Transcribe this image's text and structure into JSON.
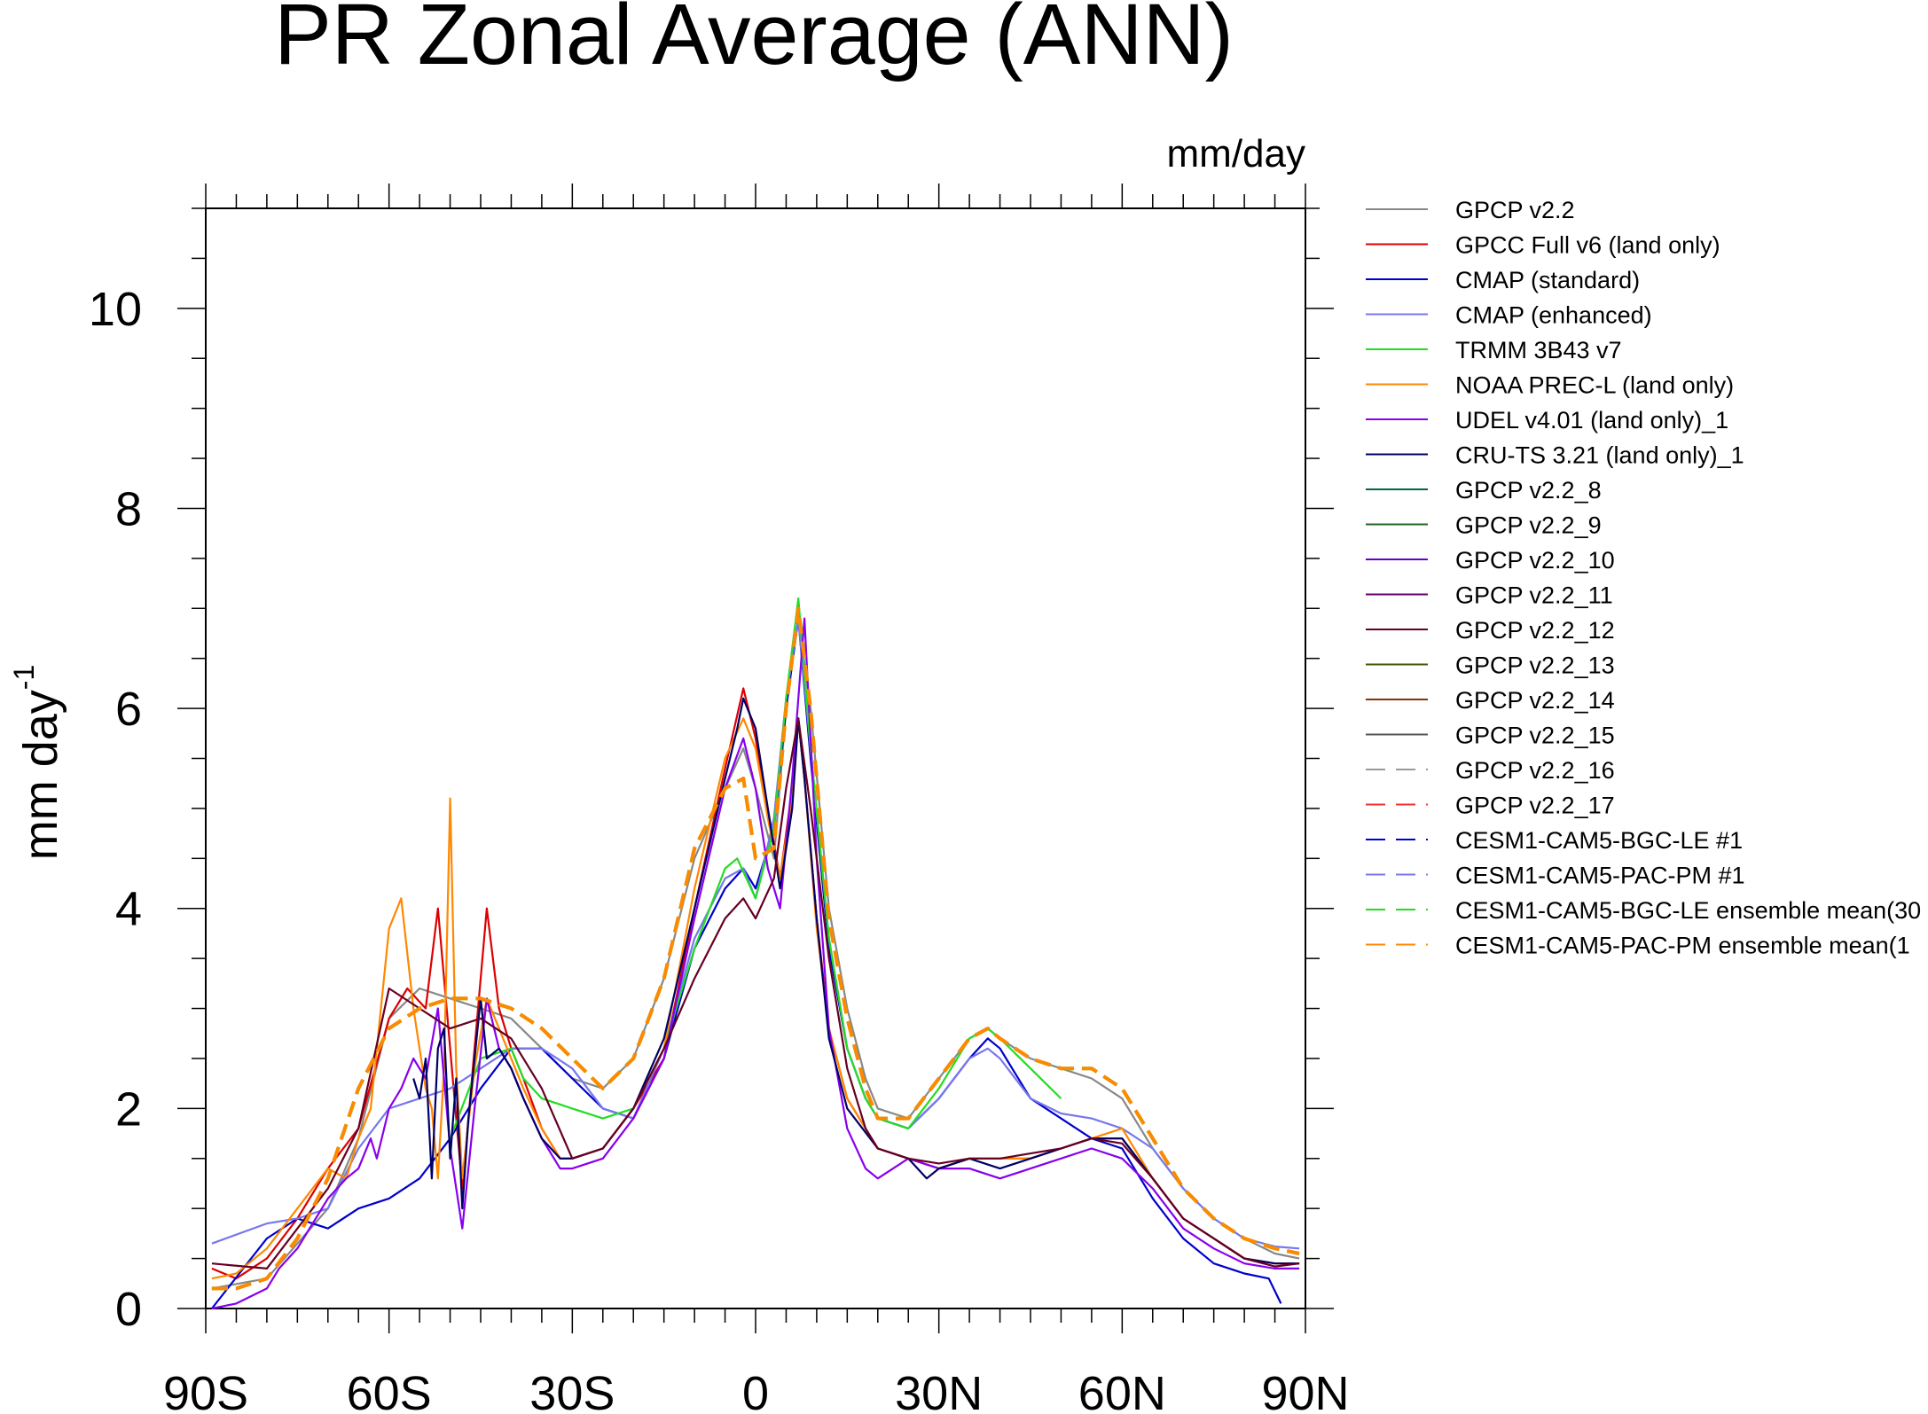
{
  "chart_data": {
    "type": "line",
    "title": "PR Zonal Average (ANN)",
    "units_label": "mm/day",
    "ylabel": "mm day",
    "ylabel_superscript": "-1",
    "xlim": [
      -90,
      90
    ],
    "ylim": [
      0,
      11
    ],
    "grid": false,
    "legend_position": "right",
    "x_ticks": [
      {
        "value": -90,
        "label": "90S"
      },
      {
        "value": -60,
        "label": "60S"
      },
      {
        "value": -30,
        "label": "30S"
      },
      {
        "value": 0,
        "label": "0"
      },
      {
        "value": 30,
        "label": "30N"
      },
      {
        "value": 60,
        "label": "60N"
      },
      {
        "value": 90,
        "label": "90N"
      }
    ],
    "y_ticks": [
      {
        "value": 0,
        "label": "0"
      },
      {
        "value": 2,
        "label": "2"
      },
      {
        "value": 4,
        "label": "4"
      },
      {
        "value": 6,
        "label": "6"
      },
      {
        "value": 8,
        "label": "8"
      },
      {
        "value": 10,
        "label": "10"
      }
    ],
    "series": [
      {
        "name": "GPCP v2.2",
        "color": "#888888",
        "dash": "solid",
        "x": [
          -89,
          -80,
          -70,
          -65,
          -60,
          -55,
          -50,
          -45,
          -40,
          -35,
          -30,
          -25,
          -20,
          -15,
          -10,
          -5,
          -2,
          0,
          3,
          5,
          7,
          9,
          12,
          15,
          18,
          20,
          25,
          30,
          35,
          38,
          40,
          45,
          50,
          55,
          60,
          65,
          70,
          75,
          80,
          85,
          89
        ],
        "y": [
          0.2,
          0.3,
          1.0,
          1.7,
          2.9,
          3.2,
          3.1,
          3.0,
          2.9,
          2.6,
          2.3,
          2.2,
          2.5,
          3.3,
          4.5,
          5.2,
          5.6,
          5.2,
          4.5,
          6.0,
          6.9,
          6.0,
          4.0,
          3.0,
          2.3,
          2.0,
          1.9,
          2.3,
          2.7,
          2.8,
          2.7,
          2.5,
          2.4,
          2.3,
          2.1,
          1.6,
          1.2,
          0.9,
          0.7,
          0.55,
          0.5
        ]
      },
      {
        "name": "GPCC Full v6 (land only)",
        "color": "#dd0000",
        "dash": "solid",
        "x": [
          -89,
          -85,
          -80,
          -75,
          -70,
          -65,
          -60,
          -57,
          -54,
          -52,
          -50,
          -48,
          -46,
          -44,
          -42,
          -40,
          -38,
          -35,
          -32,
          -30,
          -25,
          -20,
          -15,
          -10,
          -5,
          -2,
          0,
          2,
          4,
          6,
          7,
          8,
          10,
          12,
          15,
          20,
          25,
          30,
          35,
          40,
          45,
          50,
          55,
          60,
          65,
          70,
          75,
          80,
          85,
          89
        ],
        "y": [
          0.4,
          0.3,
          0.5,
          0.9,
          1.4,
          1.8,
          2.9,
          3.2,
          3.0,
          4.0,
          2.6,
          1.2,
          2.6,
          4.0,
          3.0,
          2.6,
          2.3,
          1.8,
          1.5,
          1.5,
          1.6,
          2.0,
          2.5,
          4.0,
          5.4,
          6.2,
          5.7,
          5.0,
          4.3,
          5.2,
          5.9,
          5.3,
          3.9,
          2.8,
          2.1,
          1.6,
          1.5,
          1.4,
          1.5,
          1.5,
          1.5,
          1.6,
          1.7,
          1.7,
          1.3,
          0.9,
          0.7,
          0.5,
          0.45,
          0.45
        ]
      },
      {
        "name": "CMAP (standard)",
        "color": "#0000cc",
        "dash": "solid",
        "x": [
          -89,
          -80,
          -75,
          -70,
          -65,
          -60,
          -55,
          -50,
          -45,
          -40,
          -35,
          -30,
          -25,
          -20,
          -15,
          -10,
          -5,
          -2,
          0,
          3,
          5,
          7,
          9,
          12,
          15,
          18,
          20,
          25,
          30,
          35,
          38,
          40,
          45,
          50,
          55,
          60,
          65,
          70,
          75,
          80,
          84,
          86
        ],
        "y": [
          0.0,
          0.7,
          0.9,
          0.8,
          1.0,
          1.1,
          1.3,
          1.7,
          2.2,
          2.6,
          2.6,
          2.3,
          2.0,
          1.9,
          2.5,
          3.6,
          4.2,
          4.4,
          4.2,
          4.8,
          6.0,
          6.9,
          5.5,
          3.6,
          2.6,
          2.1,
          1.9,
          1.8,
          2.1,
          2.5,
          2.7,
          2.6,
          2.1,
          1.9,
          1.7,
          1.6,
          1.1,
          0.7,
          0.45,
          0.35,
          0.3,
          0.05
        ]
      },
      {
        "name": "CMAP (enhanced)",
        "color": "#7777ee",
        "dash": "solid",
        "x": [
          -89,
          -80,
          -75,
          -70,
          -65,
          -60,
          -55,
          -50,
          -45,
          -40,
          -35,
          -30,
          -25,
          -20,
          -15,
          -10,
          -5,
          -2,
          0,
          3,
          5,
          7,
          9,
          12,
          15,
          18,
          20,
          25,
          30,
          35,
          38,
          40,
          45,
          50,
          55,
          60,
          65,
          70,
          75,
          80,
          85,
          89
        ],
        "y": [
          0.65,
          0.85,
          0.9,
          1.0,
          1.6,
          2.0,
          2.1,
          2.2,
          2.4,
          2.6,
          2.6,
          2.4,
          2.0,
          1.9,
          2.6,
          3.7,
          4.3,
          4.4,
          4.1,
          4.9,
          6.1,
          6.9,
          5.6,
          3.7,
          2.6,
          2.1,
          1.9,
          1.8,
          2.1,
          2.5,
          2.6,
          2.5,
          2.1,
          1.95,
          1.9,
          1.8,
          1.6,
          1.2,
          0.9,
          0.7,
          0.62,
          0.6
        ]
      },
      {
        "name": "TRMM 3B43 v7",
        "color": "#22dd22",
        "dash": "solid",
        "x": [
          -50,
          -45,
          -40,
          -38,
          -35,
          -30,
          -25,
          -20,
          -15,
          -10,
          -5,
          -3,
          0,
          3,
          5,
          7,
          9,
          12,
          15,
          18,
          20,
          25,
          30,
          35,
          38,
          40,
          45,
          50
        ],
        "y": [
          1.7,
          2.5,
          2.6,
          2.3,
          2.1,
          2.0,
          1.9,
          2.0,
          2.6,
          3.6,
          4.4,
          4.5,
          4.1,
          4.8,
          6.1,
          7.1,
          5.6,
          3.7,
          2.6,
          2.1,
          1.9,
          1.8,
          2.2,
          2.7,
          2.8,
          2.7,
          2.4,
          2.1
        ]
      },
      {
        "name": "NOAA PREC-L (land only)",
        "color": "#ff8800",
        "dash": "solid",
        "x": [
          -89,
          -85,
          -80,
          -75,
          -70,
          -67,
          -65,
          -63,
          -60,
          -58,
          -56,
          -54,
          -53,
          -52,
          -51,
          -50,
          -49,
          -48,
          -46,
          -44,
          -42,
          -40,
          -38,
          -35,
          -32,
          -30,
          -25,
          -20,
          -15,
          -10,
          -5,
          -2,
          0,
          2,
          4,
          6,
          7,
          8,
          10,
          12,
          15,
          20,
          25,
          30,
          35,
          40,
          45,
          50,
          55,
          60,
          65,
          70,
          75,
          80,
          85,
          89
        ],
        "y": [
          0.3,
          0.35,
          0.6,
          1.0,
          1.4,
          1.3,
          1.7,
          2.0,
          3.8,
          4.1,
          3.0,
          2.2,
          2.0,
          1.3,
          2.4,
          5.1,
          2.4,
          1.3,
          2.4,
          3.1,
          2.8,
          2.5,
          2.2,
          1.8,
          1.5,
          1.5,
          1.6,
          2.0,
          2.6,
          4.2,
          5.5,
          5.9,
          5.6,
          4.9,
          4.3,
          5.1,
          5.9,
          5.3,
          3.8,
          2.8,
          2.1,
          1.6,
          1.5,
          1.4,
          1.5,
          1.5,
          1.5,
          1.6,
          1.7,
          1.8,
          1.3,
          0.9,
          0.7,
          0.5,
          0.45,
          0.45
        ]
      },
      {
        "name": "UDEL v4.01 (land only)_1",
        "color": "#8800ee",
        "dash": "solid",
        "x": [
          -89,
          -85,
          -80,
          -78,
          -75,
          -72,
          -70,
          -67,
          -65,
          -63,
          -62,
          -60,
          -58,
          -56,
          -54,
          -52,
          -50,
          -48,
          -46,
          -44,
          -42,
          -40,
          -38,
          -35,
          -32,
          -30,
          -25,
          -20,
          -15,
          -10,
          -5,
          -2,
          0,
          2,
          4,
          6,
          8,
          10,
          12,
          15,
          18,
          20,
          25,
          30,
          35,
          40,
          45,
          50,
          55,
          60,
          65,
          70,
          75,
          80,
          85,
          89
        ],
        "y": [
          0.0,
          0.05,
          0.2,
          0.4,
          0.6,
          0.9,
          1.1,
          1.3,
          1.4,
          1.7,
          1.5,
          2.0,
          2.2,
          2.5,
          2.3,
          3.0,
          1.6,
          0.8,
          2.0,
          3.1,
          2.6,
          2.4,
          2.1,
          1.7,
          1.4,
          1.4,
          1.5,
          1.9,
          2.5,
          3.9,
          5.2,
          5.7,
          5.2,
          4.4,
          4.0,
          5.3,
          6.9,
          4.5,
          2.8,
          1.8,
          1.4,
          1.3,
          1.5,
          1.4,
          1.4,
          1.3,
          1.4,
          1.5,
          1.6,
          1.5,
          1.2,
          0.8,
          0.6,
          0.45,
          0.4,
          0.4
        ]
      },
      {
        "name": "CRU-TS 3.21 (land only)_1",
        "color": "#000066",
        "dash": "solid",
        "x": [
          -56,
          -55,
          -54,
          -53,
          -52,
          -51,
          -50,
          -49,
          -48,
          -47,
          -46,
          -45,
          -44,
          -42,
          -40,
          -38,
          -35,
          -32,
          -30,
          -25,
          -20,
          -15,
          -10,
          -5,
          -3,
          -2,
          0,
          2,
          4,
          6,
          7,
          8,
          10,
          12,
          15,
          20,
          25,
          28,
          30,
          35,
          40,
          45,
          50,
          55,
          60,
          65,
          70,
          75,
          80,
          85,
          89
        ],
        "y": [
          2.3,
          2.1,
          2.5,
          1.3,
          2.6,
          2.8,
          1.5,
          2.3,
          1.0,
          1.9,
          2.5,
          3.1,
          2.5,
          2.6,
          2.4,
          2.1,
          1.7,
          1.5,
          1.5,
          1.6,
          2.0,
          2.7,
          4.0,
          5.3,
          5.8,
          6.1,
          5.8,
          5.0,
          4.2,
          5.0,
          5.9,
          5.3,
          3.9,
          2.7,
          2.0,
          1.6,
          1.5,
          1.3,
          1.4,
          1.5,
          1.4,
          1.5,
          1.6,
          1.7,
          1.7,
          1.3,
          0.9,
          0.7,
          0.5,
          0.45,
          0.45
        ]
      },
      {
        "name": "GPCP v2.2_8",
        "color": "#006644",
        "dash": "solid",
        "x": [],
        "y": []
      },
      {
        "name": "GPCP v2.2_9",
        "color": "#226622",
        "dash": "solid",
        "x": [],
        "y": []
      },
      {
        "name": "GPCP v2.2_10",
        "color": "#6600cc",
        "dash": "solid",
        "x": [],
        "y": []
      },
      {
        "name": "GPCP v2.2_11",
        "color": "#660066",
        "dash": "solid",
        "x": [],
        "y": []
      },
      {
        "name": "GPCP v2.2_12",
        "color": "#660022",
        "dash": "solid",
        "x": [
          -89,
          -80,
          -70,
          -65,
          -60,
          -55,
          -50,
          -45,
          -40,
          -35,
          -30,
          -25,
          -20,
          -15,
          -10,
          -5,
          -2,
          0,
          3,
          5,
          7,
          9,
          12,
          15,
          18,
          20,
          25,
          30,
          35,
          38,
          40,
          45,
          50,
          55,
          60,
          65,
          70,
          75,
          80,
          85,
          89
        ],
        "y": [
          0.45,
          0.4,
          1.2,
          1.8,
          3.2,
          3.0,
          2.8,
          2.9,
          2.7,
          2.2,
          1.5,
          1.6,
          2.0,
          2.6,
          3.3,
          3.9,
          4.1,
          3.9,
          4.3,
          5.2,
          5.9,
          5.0,
          3.5,
          2.4,
          1.8,
          1.6,
          1.5,
          1.45,
          1.5,
          1.5,
          1.5,
          1.55,
          1.6,
          1.7,
          1.65,
          1.3,
          0.9,
          0.7,
          0.5,
          0.42,
          0.45
        ]
      },
      {
        "name": "GPCP v2.2_13",
        "color": "#445500",
        "dash": "solid",
        "x": [],
        "y": []
      },
      {
        "name": "GPCP v2.2_14",
        "color": "#883300",
        "dash": "solid",
        "x": [],
        "y": []
      },
      {
        "name": "GPCP v2.2_15",
        "color": "#555555",
        "dash": "solid",
        "x": [],
        "y": []
      },
      {
        "name": "GPCP v2.2_16",
        "color": "#999999",
        "dash": "dashed",
        "x": [],
        "y": []
      },
      {
        "name": "GPCP v2.2_17",
        "color": "#ee3333",
        "dash": "dashed",
        "x": [],
        "y": []
      },
      {
        "name": "CESM1-CAM5-BGC-LE #1",
        "color": "#0000cc",
        "dash": "dashed",
        "x": [],
        "y": []
      },
      {
        "name": "CESM1-CAM5-PAC-PM #1",
        "color": "#7777ee",
        "dash": "dashed",
        "x": [],
        "y": []
      },
      {
        "name": "CESM1-CAM5-BGC-LE ensemble mean(30",
        "color": "#22dd22",
        "dash": "dashed",
        "x": [
          -89,
          -85,
          -80,
          -75,
          -70,
          -65,
          -60,
          -55,
          -50,
          -45,
          -40,
          -35,
          -30,
          -25,
          -20,
          -15,
          -10,
          -5,
          -2,
          0,
          3,
          5,
          7,
          9,
          12,
          15,
          18,
          20,
          25,
          30,
          35,
          38,
          40,
          45,
          50,
          55,
          60,
          65,
          70,
          75,
          80,
          85,
          89
        ],
        "y": [
          0.2,
          0.2,
          0.3,
          0.7,
          1.3,
          2.2,
          2.8,
          3.0,
          3.1,
          3.1,
          3.0,
          2.8,
          2.5,
          2.2,
          2.5,
          3.3,
          4.6,
          5.2,
          5.3,
          4.5,
          4.6,
          6.0,
          7.0,
          6.0,
          3.9,
          2.9,
          2.2,
          1.9,
          1.9,
          2.3,
          2.7,
          2.8,
          2.7,
          2.5,
          2.4,
          2.4,
          2.2,
          1.7,
          1.2,
          0.9,
          0.7,
          0.6,
          0.55
        ]
      },
      {
        "name": "CESM1-CAM5-PAC-PM ensemble mean(1",
        "color": "#ff8800",
        "dash": "dashed",
        "x": [
          -89,
          -85,
          -80,
          -75,
          -70,
          -65,
          -60,
          -55,
          -50,
          -45,
          -40,
          -35,
          -30,
          -25,
          -20,
          -15,
          -10,
          -5,
          -2,
          0,
          3,
          5,
          7,
          9,
          12,
          15,
          18,
          20,
          25,
          30,
          35,
          38,
          40,
          45,
          50,
          55,
          60,
          65,
          70,
          75,
          80,
          85,
          89
        ],
        "y": [
          0.2,
          0.2,
          0.3,
          0.7,
          1.3,
          2.2,
          2.8,
          3.0,
          3.1,
          3.1,
          3.0,
          2.8,
          2.5,
          2.2,
          2.5,
          3.3,
          4.6,
          5.2,
          5.3,
          4.5,
          4.6,
          6.0,
          7.0,
          6.0,
          3.9,
          2.9,
          2.2,
          1.9,
          1.9,
          2.3,
          2.7,
          2.8,
          2.7,
          2.5,
          2.4,
          2.4,
          2.2,
          1.7,
          1.2,
          0.9,
          0.7,
          0.6,
          0.55
        ]
      }
    ]
  }
}
